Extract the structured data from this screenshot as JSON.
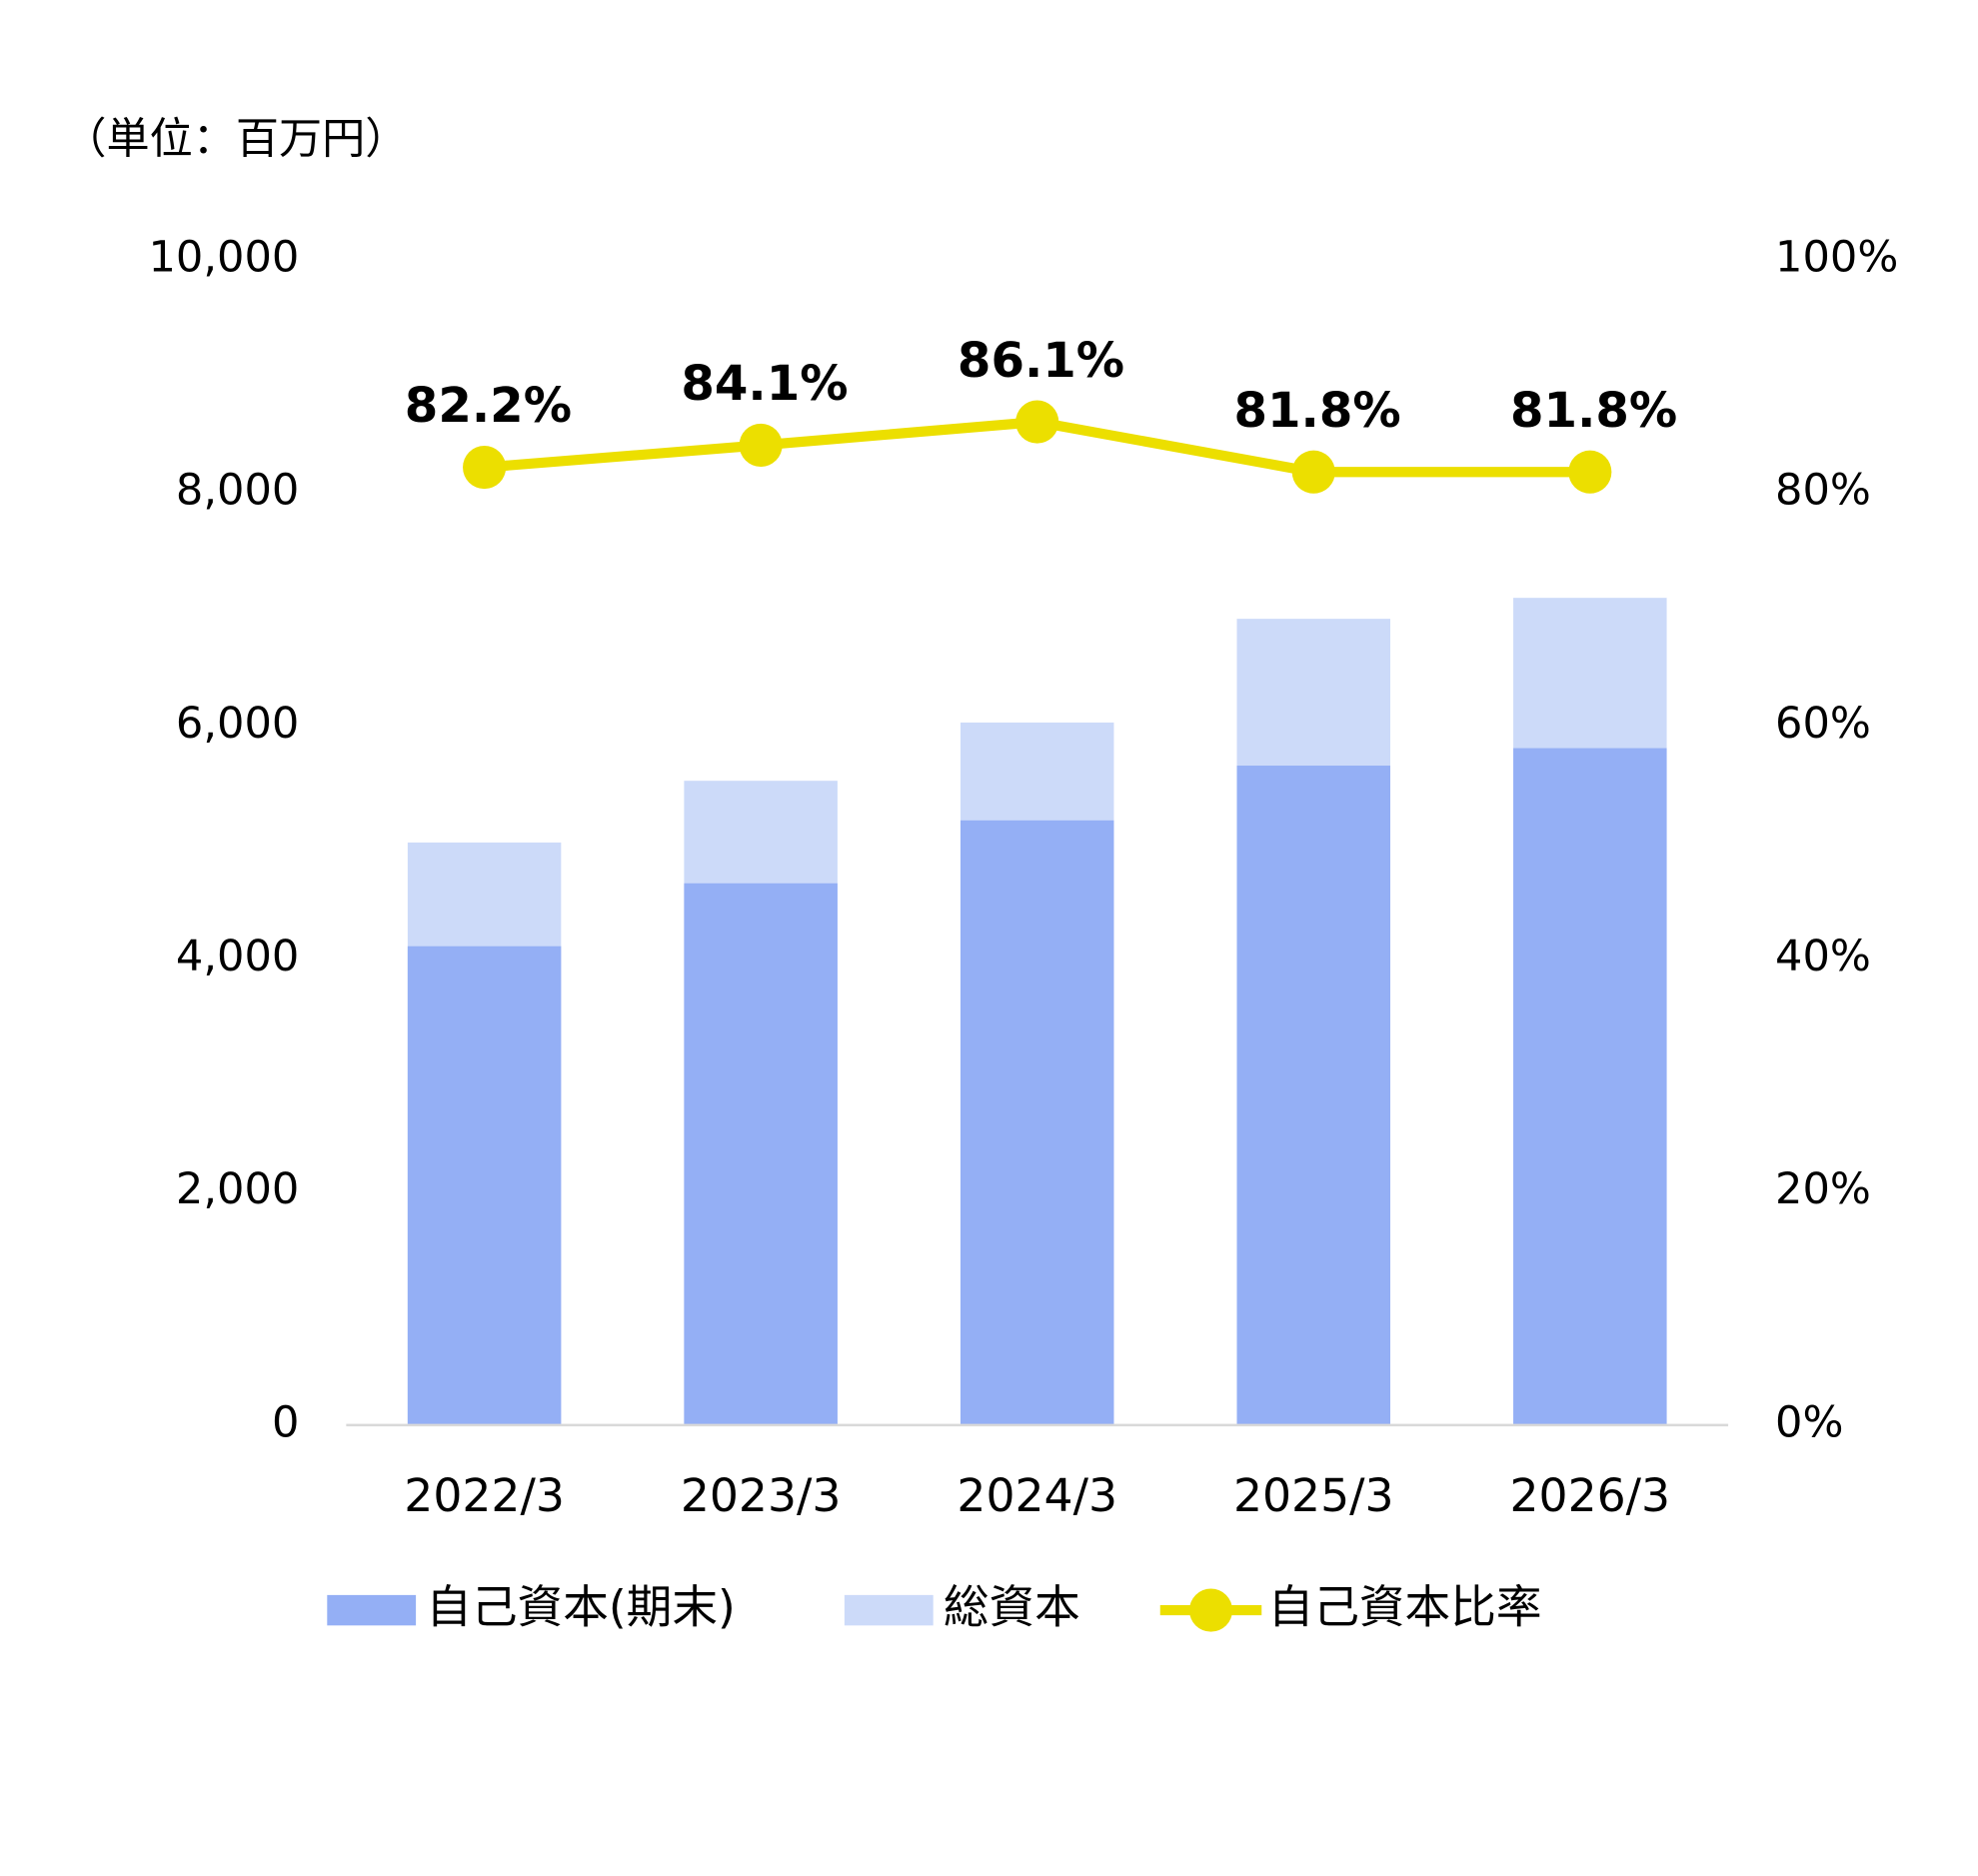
{
  "chart_data": {
    "type": "bar_line",
    "unit_label": "（単位：百万円）",
    "categories": [
      "2022/3",
      "2023/3",
      "2024/3",
      "2025/3",
      "2026/3"
    ],
    "series": [
      {
        "name": "自己資本(期末)",
        "color": "#94aff5",
        "type": "bar",
        "values": [
          4110,
          4650,
          5190,
          5660,
          5810
        ]
      },
      {
        "name": "総資本",
        "color": "#ccdaf9",
        "type": "bar",
        "values": [
          5000,
          5530,
          6030,
          6920,
          7100
        ]
      },
      {
        "name": "自己資本比率",
        "color": "#ecdf00",
        "type": "line",
        "axis": "y2",
        "values": [
          82.2,
          84.1,
          86.1,
          81.8,
          81.8
        ],
        "value_labels": [
          "82.2%",
          "84.1%",
          "86.1%",
          "81.8%",
          "81.8%"
        ]
      }
    ],
    "ylim": [
      0,
      10000
    ],
    "yticks": [
      0,
      {
        "value": 2000,
        "label": "2,000"
      },
      {
        "value": 4000,
        "label": "4,000"
      },
      {
        "value": 6000,
        "label": "6,000"
      },
      {
        "value": 8000,
        "label": "8,000"
      },
      {
        "value": 10000,
        "label": "10,000"
      }
    ],
    "y2lim": [
      0,
      100
    ],
    "y2ticks": [
      {
        "value": 0,
        "label": "0%"
      },
      {
        "value": 20,
        "label": "20%"
      },
      {
        "value": 40,
        "label": "40%"
      },
      {
        "value": 60,
        "label": "60%"
      },
      {
        "value": 80,
        "label": "80%"
      },
      {
        "value": 100,
        "label": "100%"
      }
    ],
    "legend": "bottom"
  }
}
